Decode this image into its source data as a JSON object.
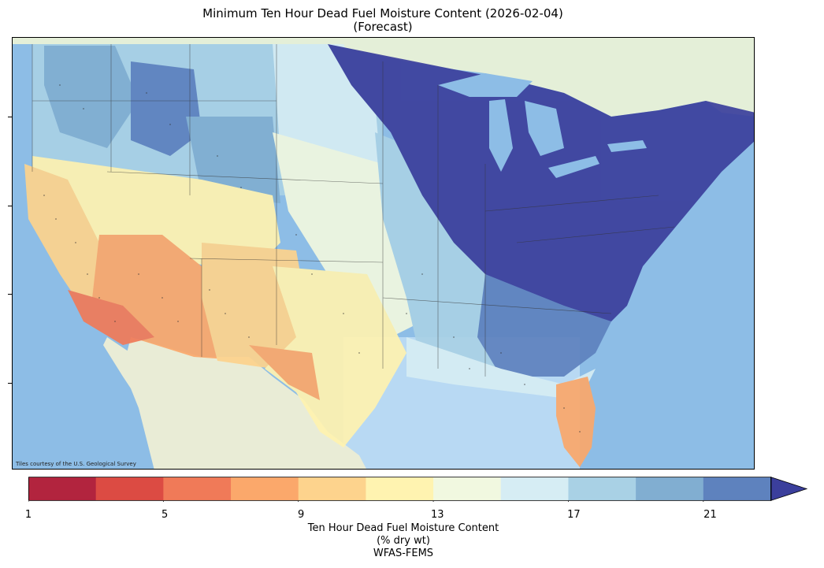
{
  "title": {
    "line1": "Minimum Ten Hour Dead Fuel Moisture Content (2026-02-04)",
    "line2": "(Forecast)"
  },
  "map": {
    "attribution": "Tiles courtesy of the U.S. Geological Survey",
    "features": [
      "lake-superior",
      "lake-michigan",
      "lake-huron",
      "lake-erie",
      "lake-ontario",
      "pacific-ocean",
      "atlantic-ocean",
      "gulf-of-mexico",
      "state-borders",
      "station-markers"
    ]
  },
  "colorbar": {
    "ticks": [
      "1",
      "5",
      "9",
      "13",
      "17",
      "21"
    ],
    "tick_values": [
      1,
      5,
      9,
      13,
      17,
      21
    ],
    "bins": [
      {
        "min": 1,
        "max": 3,
        "color": "#b2243e"
      },
      {
        "min": 3,
        "max": 5,
        "color": "#dc4b43"
      },
      {
        "min": 5,
        "max": 7,
        "color": "#f07a58"
      },
      {
        "min": 7,
        "max": 9,
        "color": "#fba86b"
      },
      {
        "min": 9,
        "max": 11,
        "color": "#fdd38d"
      },
      {
        "min": 11,
        "max": 13,
        "color": "#fff3b0"
      },
      {
        "min": 13,
        "max": 15,
        "color": "#f1f8e0"
      },
      {
        "min": 15,
        "max": 17,
        "color": "#d6edf4"
      },
      {
        "min": 17,
        "max": 19,
        "color": "#a9d1e5"
      },
      {
        "min": 19,
        "max": 21,
        "color": "#81aed1"
      },
      {
        "min": 21,
        "max": 23,
        "color": "#5e82be"
      }
    ],
    "over_color": "#3b3f9c",
    "range": [
      1,
      23
    ],
    "extend": "max",
    "label_line1": "Ten Hour Dead Fuel Moisture Content",
    "label_line2": "(% dry wt)",
    "label_line3": "WFAS-FEMS"
  }
}
